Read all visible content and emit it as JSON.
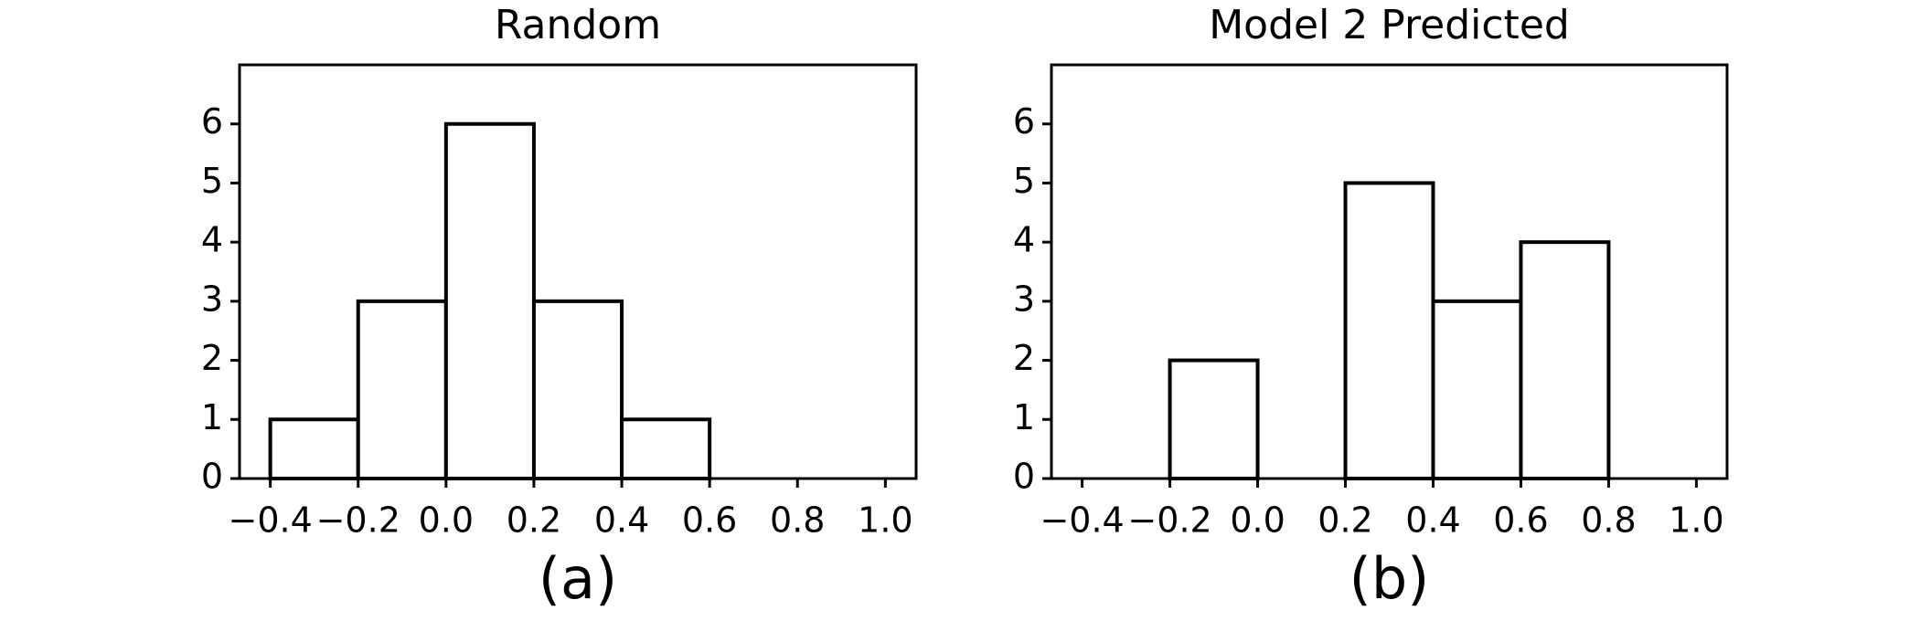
{
  "chart_data": [
    {
      "type": "histogram",
      "title": "Random",
      "caption": "(a)",
      "bins": [
        -0.4,
        -0.2,
        0,
        0.2,
        0.4,
        0.6,
        0.8,
        1.0
      ],
      "values": [
        1,
        3,
        6,
        3,
        1,
        0,
        0
      ],
      "color": "#ffffff",
      "edgecolor": "#000000",
      "xlim": [
        -0.47,
        1.07
      ],
      "ylim": [
        0,
        7
      ],
      "xticks": [
        {
          "value": -0.4,
          "label": "−0.4"
        },
        {
          "value": -0.2,
          "label": "−0.2"
        },
        {
          "value": 0,
          "label": "0.0"
        },
        0.2,
        0.4,
        0.6,
        0.8,
        {
          "value": 1.0,
          "label": "1.0"
        }
      ],
      "yticks": [
        0,
        1,
        2,
        3,
        4,
        5,
        6
      ]
    },
    {
      "type": "histogram",
      "title": "Model 2 Predicted",
      "caption": "(b)",
      "bins": [
        -0.4,
        -0.2,
        0,
        0.2,
        0.4,
        0.6,
        0.8,
        1.0
      ],
      "values": [
        0,
        2,
        0,
        5,
        3,
        4,
        0
      ],
      "color": "#ffffff",
      "edgecolor": "#000000",
      "xlim": [
        -0.47,
        1.07
      ],
      "ylim": [
        0,
        7
      ],
      "xticks": [
        {
          "value": -0.4,
          "label": "−0.4"
        },
        {
          "value": -0.2,
          "label": "−0.2"
        },
        {
          "value": 0,
          "label": "0.0"
        },
        0.2,
        0.4,
        0.6,
        0.8,
        {
          "value": 1.0,
          "label": "1.0"
        }
      ],
      "yticks": [
        0,
        1,
        2,
        3,
        4,
        5,
        6
      ]
    }
  ]
}
